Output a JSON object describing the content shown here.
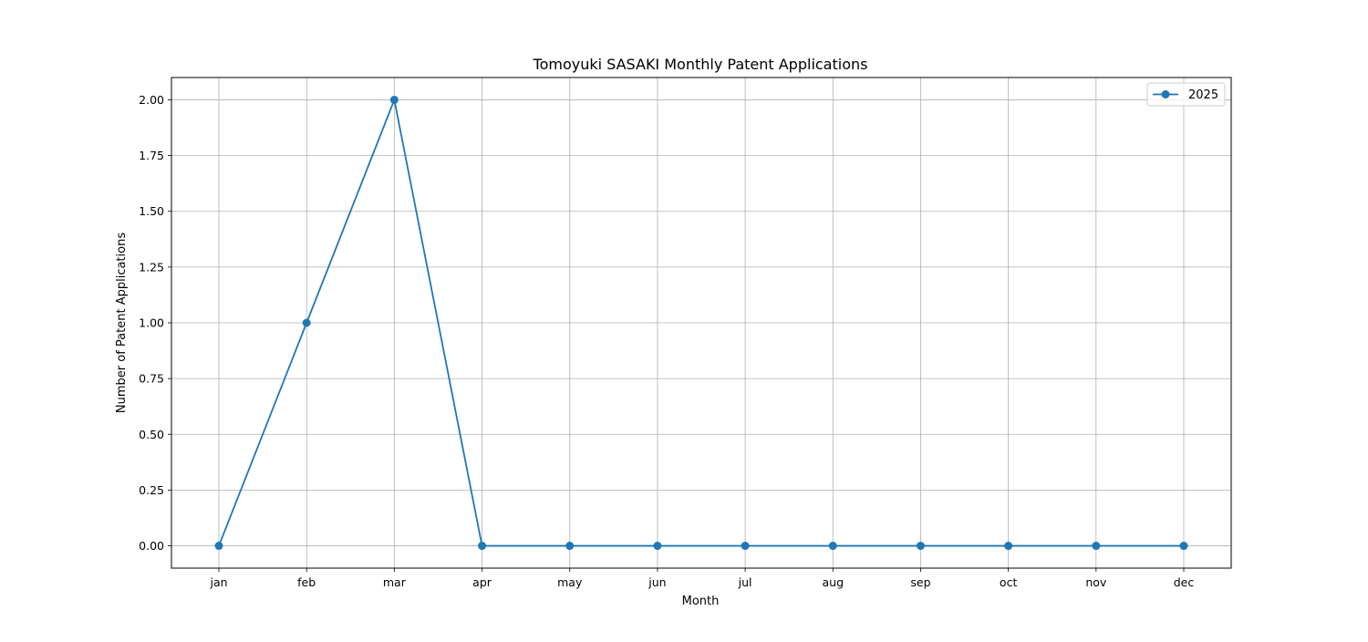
{
  "chart_data": {
    "type": "line",
    "title": "Tomoyuki SASAKI Monthly Patent Applications",
    "xlabel": "Month",
    "ylabel": "Number of Patent Applications",
    "categories": [
      "jan",
      "feb",
      "mar",
      "apr",
      "may",
      "jun",
      "jul",
      "aug",
      "sep",
      "oct",
      "nov",
      "dec"
    ],
    "series": [
      {
        "name": "2025",
        "values": [
          0,
          1,
          2,
          0,
          0,
          0,
          0,
          0,
          0,
          0,
          0,
          0
        ],
        "color": "#1f77b4",
        "marker": "circle"
      }
    ],
    "ylim": [
      -0.1,
      2.1
    ],
    "yticks": [
      0.0,
      0.25,
      0.5,
      0.75,
      1.0,
      1.25,
      1.5,
      1.75,
      2.0
    ],
    "ytick_labels": [
      "0.00",
      "0.25",
      "0.50",
      "0.75",
      "1.00",
      "1.25",
      "1.50",
      "1.75",
      "2.00"
    ],
    "grid": true,
    "legend_position": "top-right"
  }
}
